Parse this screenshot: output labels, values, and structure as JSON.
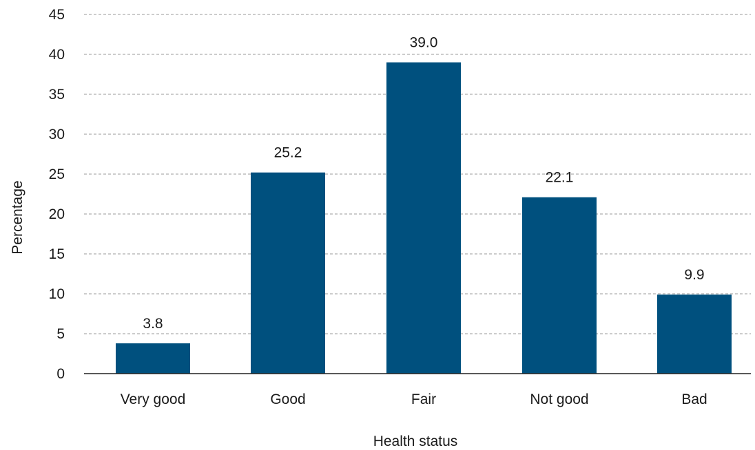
{
  "chart_data": {
    "type": "bar",
    "categories": [
      "Very good",
      "Good",
      "Fair",
      "Not good",
      "Bad"
    ],
    "values": [
      3.8,
      25.2,
      39.0,
      22.1,
      9.9
    ],
    "data_labels": [
      "3.8",
      "25.2",
      "39.0",
      "22.1",
      "9.9"
    ],
    "xlabel": "Health status",
    "ylabel": "Percentage",
    "ylim": [
      0,
      45
    ],
    "yticks": [
      0,
      5,
      10,
      15,
      20,
      25,
      30,
      35,
      40,
      45
    ],
    "grid": true,
    "legend": "none",
    "bar_color": "#00507e"
  }
}
